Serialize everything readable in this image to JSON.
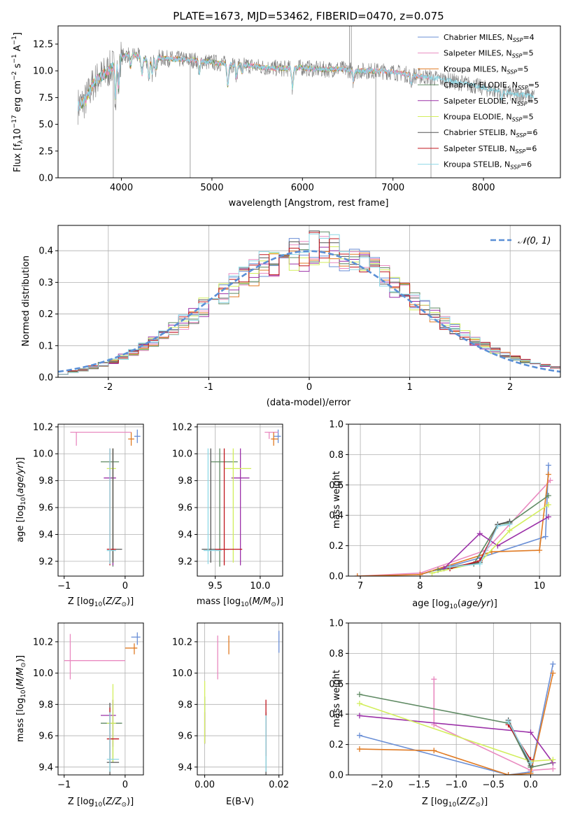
{
  "colors": {
    "Chabrier MILES": "#6a8fd6",
    "Salpeter MILES": "#e98ac0",
    "Kroupa MILES": "#e07b24",
    "Chabrier ELODIE": "#5f8a63",
    "Salpeter ELODIE": "#9b30a8",
    "Kroupa ELODIE": "#d2ee5c",
    "Chabrier STELIB": "#555555",
    "Salpeter STELIB": "#c0161e",
    "Kroupa STELIB": "#8ed8e6"
  },
  "chart_data": [
    {
      "id": "spectrum",
      "type": "line",
      "title": "PLATE=1673, MJD=53462, FIBERID=0470, z=0.075",
      "xlabel": "wavelength [Angstrom, rest frame]",
      "ylabel": "Flux [f_λ 10^-17 erg cm^-2 s^-1 A^-1]",
      "xlim": [
        3300,
        8850
      ],
      "ylim": [
        0,
        14.2
      ],
      "xticks": [
        4000,
        5000,
        6000,
        7000,
        8000
      ],
      "yticks": [
        0.0,
        2.5,
        5.0,
        7.5,
        10.0,
        12.5
      ],
      "ytick_labels": [
        "0.0",
        "2.5",
        "5.0",
        "7.5",
        "10.0",
        "12.5"
      ],
      "legend": [
        "Chabrier MILES, N_SSP=4",
        "Salpeter MILES, N_SSP=5",
        "Kroupa MILES, N_SSP=5",
        "Chabrier ELODIE, N_SSP=5",
        "Salpeter ELODIE, N_SSP=5",
        "Kroupa ELODIE, N_SSP=5",
        "Chabrier STELIB, N_SSP=6",
        "Salpeter STELIB, N_SSP=6",
        "Kroupa STELIB, N_SSP=6"
      ],
      "legend_placement": "upper right",
      "continuum_x": [
        3500,
        3600,
        3700,
        3800,
        3900,
        4000,
        4100,
        4200,
        4300,
        4400,
        4600,
        4800,
        5000,
        5200,
        5400,
        5600,
        5800,
        6000,
        6200,
        6400,
        6600,
        6800,
        7000,
        7200,
        7400,
        7600,
        7800,
        8000,
        8200,
        8400,
        8560
      ],
      "continuum_y": [
        6.6,
        7.2,
        9.0,
        9.6,
        10.4,
        11.3,
        11.6,
        11.3,
        10.9,
        11.2,
        11.1,
        11.0,
        10.8,
        10.6,
        10.5,
        10.3,
        10.2,
        10.3,
        10.1,
        10.2,
        10.0,
        10.0,
        9.9,
        9.6,
        9.4,
        9.1,
        8.8,
        8.4,
        8.0,
        7.8,
        7.6
      ]
    },
    {
      "id": "residuals",
      "type": "histogram",
      "xlabel": "(data-model)/error",
      "ylabel": "Normed distribution",
      "xlim": [
        -2.5,
        2.5
      ],
      "ylim": [
        0,
        0.48
      ],
      "xticks": [
        -2,
        -1,
        0,
        1,
        2
      ],
      "yticks": [
        0.0,
        0.1,
        0.2,
        0.3,
        0.4
      ],
      "ytick_labels": [
        "0.0",
        "0.1",
        "0.2",
        "0.3",
        "0.4"
      ],
      "reference_curve": "N(0,1)",
      "legend": [
        "𝒩(0, 1)"
      ],
      "legend_placement": "upper right",
      "bin_width": 0.1
    },
    {
      "id": "age_vs_Z",
      "type": "scatter",
      "xlabel": "Z [log10(Z/Z⊙)]",
      "ylabel": "age  [log10(age/yr)]",
      "xlim": [
        -1.1,
        0.3
      ],
      "ylim": [
        9.09,
        10.22
      ],
      "xticks": [
        -1,
        0
      ],
      "xtick_labels": [
        "−1",
        "0"
      ],
      "yticks": [
        9.2,
        9.4,
        9.6,
        9.8,
        10.0,
        10.2
      ],
      "ytick_labels": [
        "9.2",
        "9.4",
        "9.6",
        "9.8",
        "10.0",
        "10.2"
      ],
      "points": [
        {
          "model": "Chabrier MILES",
          "x": 0.2,
          "y": 10.13,
          "xerr": [
            0.05,
            0.05
          ],
          "yerr": [
            0.05,
            0.05
          ]
        },
        {
          "model": "Salpeter MILES",
          "x": -0.8,
          "y": 10.16,
          "xerr": [
            0.1,
            0.9
          ],
          "yerr": [
            0.1,
            0.0
          ]
        },
        {
          "model": "Kroupa MILES",
          "x": 0.1,
          "y": 10.11,
          "xerr": [
            0.05,
            0.05
          ],
          "yerr": [
            0.05,
            0.05
          ]
        },
        {
          "model": "Chabrier ELODIE",
          "x": -0.2,
          "y": 9.94,
          "xerr": [
            0.2,
            0.1
          ],
          "yerr": [
            0.78,
            0.1
          ]
        },
        {
          "model": "Salpeter ELODIE",
          "x": -0.2,
          "y": 9.82,
          "xerr": [
            0.15,
            0.05
          ],
          "yerr": [
            0.65,
            0.22
          ]
        },
        {
          "model": "Kroupa ELODIE",
          "x": -0.2,
          "y": 9.89,
          "xerr": [
            0.1,
            0.05
          ],
          "yerr": [
            0.7,
            0.15
          ]
        },
        {
          "model": "Chabrier STELIB",
          "x": -0.2,
          "y": 9.29,
          "xerr": [
            0.05,
            0.15
          ],
          "yerr": [
            0.1,
            0.75
          ]
        },
        {
          "model": "Salpeter STELIB",
          "x": -0.25,
          "y": 9.29,
          "xerr": [
            0.05,
            0.1
          ],
          "yerr": [
            0.12,
            0.75
          ]
        },
        {
          "model": "Kroupa STELIB",
          "x": -0.25,
          "y": 9.28,
          "xerr": [
            0.05,
            0.1
          ],
          "yerr": [
            0.1,
            0.76
          ]
        }
      ]
    },
    {
      "id": "age_vs_mass",
      "type": "scatter",
      "xlabel": "mass [log10(M/M⊙)]",
      "ylabel": "",
      "xlim": [
        9.3,
        10.25
      ],
      "ylim": [
        9.09,
        10.22
      ],
      "xticks": [
        9.5,
        10.0
      ],
      "xtick_labels": [
        "9.5",
        "10.0"
      ],
      "yticks": [
        9.2,
        9.4,
        9.6,
        9.8,
        10.0,
        10.2
      ],
      "ytick_labels": [
        "9.2",
        "9.4",
        "9.6",
        "9.8",
        "10.0",
        "10.2"
      ],
      "points": [
        {
          "model": "Chabrier MILES",
          "x": 10.2,
          "y": 10.13,
          "xerr": [
            0.05,
            0.03
          ],
          "yerr": [
            0.05,
            0.05
          ]
        },
        {
          "model": "Salpeter MILES",
          "x": 10.1,
          "y": 10.16,
          "xerr": [
            0.05,
            0.1
          ],
          "yerr": [
            0.05,
            0.0
          ]
        },
        {
          "model": "Kroupa MILES",
          "x": 10.15,
          "y": 10.11,
          "xerr": [
            0.03,
            0.05
          ],
          "yerr": [
            0.05,
            0.05
          ]
        },
        {
          "model": "Chabrier ELODIE",
          "x": 9.55,
          "y": 9.94,
          "xerr": [
            0.1,
            0.2
          ],
          "yerr": [
            0.78,
            0.1
          ]
        },
        {
          "model": "Salpeter ELODIE",
          "x": 9.78,
          "y": 9.82,
          "xerr": [
            0.1,
            0.1
          ],
          "yerr": [
            0.65,
            0.22
          ]
        },
        {
          "model": "Kroupa ELODIE",
          "x": 9.7,
          "y": 9.89,
          "xerr": [
            0.1,
            0.2
          ],
          "yerr": [
            0.7,
            0.15
          ]
        },
        {
          "model": "Chabrier STELIB",
          "x": 9.45,
          "y": 9.29,
          "xerr": [
            0.1,
            0.2
          ],
          "yerr": [
            0.1,
            0.75
          ]
        },
        {
          "model": "Salpeter STELIB",
          "x": 9.6,
          "y": 9.29,
          "xerr": [
            0.1,
            0.2
          ],
          "yerr": [
            0.12,
            0.75
          ]
        },
        {
          "model": "Kroupa STELIB",
          "x": 9.42,
          "y": 9.28,
          "xerr": [
            0.05,
            0.15
          ],
          "yerr": [
            0.1,
            0.76
          ]
        }
      ]
    },
    {
      "id": "weight_vs_age",
      "type": "line",
      "xlabel": "age  [log10(age/yr)]",
      "ylabel": "mass weight",
      "xlim": [
        6.8,
        10.35
      ],
      "ylim": [
        0,
        1.0
      ],
      "xticks": [
        7,
        8,
        9,
        10
      ],
      "yticks": [
        0.0,
        0.2,
        0.4,
        0.6,
        0.8,
        1.0
      ],
      "ytick_labels": [
        "0.0",
        "0.2",
        "0.4",
        "0.6",
        "0.8",
        "1.0"
      ],
      "series": [
        {
          "model": "Chabrier MILES",
          "x": [
            8.0,
            9.0,
            10.1,
            10.15
          ],
          "y": [
            0.01,
            0.12,
            0.26,
            0.73
          ]
        },
        {
          "model": "Salpeter MILES",
          "x": [
            6.95,
            8.0,
            9.1,
            10.18
          ],
          "y": [
            0.0,
            0.02,
            0.17,
            0.63
          ]
        },
        {
          "model": "Kroupa MILES",
          "x": [
            6.95,
            8.0,
            9.2,
            10.0,
            10.15
          ],
          "y": [
            0.0,
            0.01,
            0.16,
            0.17,
            0.67
          ]
        },
        {
          "model": "Chabrier ELODIE",
          "x": [
            8.3,
            8.9,
            9.3,
            9.5,
            10.15
          ],
          "y": [
            0.04,
            0.08,
            0.34,
            0.35,
            0.53
          ]
        },
        {
          "model": "Salpeter ELODIE",
          "x": [
            8.4,
            9.0,
            9.3,
            10.15
          ],
          "y": [
            0.05,
            0.28,
            0.2,
            0.39
          ]
        },
        {
          "model": "Kroupa ELODIE",
          "x": [
            8.2,
            9.0,
            9.5,
            10.15
          ],
          "y": [
            0.02,
            0.09,
            0.3,
            0.47
          ]
        },
        {
          "model": "Chabrier STELIB",
          "x": [
            8.5,
            9.0,
            9.3,
            9.5
          ],
          "y": [
            0.06,
            0.09,
            0.34,
            0.36
          ]
        },
        {
          "model": "Salpeter STELIB",
          "x": [
            8.5,
            9.0,
            9.3
          ],
          "y": [
            0.05,
            0.1,
            0.33
          ]
        },
        {
          "model": "Kroupa STELIB",
          "x": [
            8.5,
            9.0,
            9.3,
            9.5
          ],
          "y": [
            0.06,
            0.08,
            0.33,
            0.34
          ]
        }
      ]
    },
    {
      "id": "mass_vs_Z",
      "type": "scatter",
      "xlabel": "Z [log10(Z/Z⊙)]",
      "ylabel": "mass [log10(M/M⊙)]",
      "xlim": [
        -1.1,
        0.3
      ],
      "ylim": [
        9.35,
        10.32
      ],
      "xticks": [
        -1,
        0
      ],
      "xtick_labels": [
        "−1",
        "0"
      ],
      "yticks": [
        9.4,
        9.6,
        9.8,
        10.0,
        10.2
      ],
      "ytick_labels": [
        "9.4",
        "9.6",
        "9.8",
        "10.0",
        "10.2"
      ],
      "points": [
        {
          "model": "Chabrier MILES",
          "x": 0.2,
          "y": 10.23,
          "xerr": [
            0.1,
            0.05
          ],
          "yerr": [
            0.05,
            0.03
          ]
        },
        {
          "model": "Salpeter MILES",
          "x": -0.9,
          "y": 10.08,
          "xerr": [
            0.1,
            0.9
          ],
          "yerr": [
            0.12,
            0.17
          ]
        },
        {
          "model": "Kroupa MILES",
          "x": 0.15,
          "y": 10.16,
          "xerr": [
            0.15,
            0.05
          ],
          "yerr": [
            0.04,
            0.03
          ]
        },
        {
          "model": "Chabrier ELODIE",
          "x": -0.2,
          "y": 9.68,
          "xerr": [
            0.2,
            0.15
          ],
          "yerr": [
            0.25,
            0.15
          ]
        },
        {
          "model": "Salpeter ELODIE",
          "x": -0.2,
          "y": 9.73,
          "xerr": [
            0.2,
            0.05
          ],
          "yerr": [
            0.2,
            0.1
          ]
        },
        {
          "model": "Kroupa ELODIE",
          "x": -0.2,
          "y": 9.68,
          "xerr": [
            0.1,
            0.05
          ],
          "yerr": [
            0.25,
            0.25
          ]
        },
        {
          "model": "Chabrier STELIB",
          "x": -0.25,
          "y": 9.43,
          "xerr": [
            0.05,
            0.15
          ],
          "yerr": [
            0.08,
            0.38
          ]
        },
        {
          "model": "Salpeter STELIB",
          "x": -0.25,
          "y": 9.58,
          "xerr": [
            0.05,
            0.15
          ],
          "yerr": [
            0.15,
            0.2
          ]
        },
        {
          "model": "Kroupa STELIB",
          "x": -0.25,
          "y": 9.45,
          "xerr": [
            0.05,
            0.15
          ],
          "yerr": [
            0.08,
            0.3
          ]
        }
      ]
    },
    {
      "id": "mass_vs_ebv",
      "type": "scatter",
      "xlabel": "E(B-V)",
      "ylabel": "",
      "xlim": [
        -0.002,
        0.021
      ],
      "ylim": [
        9.35,
        10.32
      ],
      "xticks": [
        0.0,
        0.02
      ],
      "xtick_labels": [
        "0.00",
        "0.02"
      ],
      "yticks": [
        9.4,
        9.6,
        9.8,
        10.0,
        10.2
      ],
      "ytick_labels": [
        "9.4",
        "9.6",
        "9.8",
        "10.0",
        "10.2"
      ],
      "points": [
        {
          "model": "Chabrier MILES",
          "x": 0.02,
          "y": 10.2,
          "yerr": [
            0.07,
            0.07
          ]
        },
        {
          "model": "Salpeter MILES",
          "x": 0.0035,
          "y": 10.1,
          "yerr": [
            0.14,
            0.14
          ]
        },
        {
          "model": "Kroupa MILES",
          "x": 0.0065,
          "y": 10.18,
          "yerr": [
            0.06,
            0.06
          ]
        },
        {
          "model": "Chabrier ELODIE",
          "x": 0.0,
          "y": 9.7,
          "yerr": [
            0.15,
            0.15
          ]
        },
        {
          "model": "Salpeter ELODIE",
          "x": 0.0,
          "y": 9.65,
          "yerr": [
            0.1,
            0.1
          ]
        },
        {
          "model": "Kroupa ELODIE",
          "x": 0.0,
          "y": 9.75,
          "yerr": [
            0.2,
            0.2
          ]
        },
        {
          "model": "Chabrier STELIB",
          "x": 0.0165,
          "y": 9.55,
          "yerr": [
            0.2,
            0.2
          ]
        },
        {
          "model": "Salpeter STELIB",
          "x": 0.0165,
          "y": 9.65,
          "yerr": [
            0.18,
            0.18
          ]
        },
        {
          "model": "Kroupa STELIB",
          "x": 0.0165,
          "y": 9.55,
          "yerr": [
            0.18,
            0.18
          ]
        }
      ]
    },
    {
      "id": "weight_vs_Z",
      "type": "line",
      "xlabel": "Z [log10(Z/Z⊙)]",
      "ylabel": "mass weight",
      "xlim": [
        -2.45,
        0.4
      ],
      "ylim": [
        0,
        1.0
      ],
      "xticks": [
        -2.0,
        -1.5,
        -1.0,
        -0.5,
        0.0
      ],
      "xtick_labels": [
        "−2.0",
        "−1.5",
        "−1.0",
        "−0.5",
        "0.0"
      ],
      "yticks": [
        0.0,
        0.2,
        0.4,
        0.6,
        0.8,
        1.0
      ],
      "ytick_labels": [
        "0.0",
        "0.2",
        "0.4",
        "0.6",
        "0.8",
        "1.0"
      ],
      "series": [
        {
          "model": "Chabrier MILES",
          "x": [
            -2.3,
            -0.3,
            0.0,
            0.3
          ],
          "y": [
            0.26,
            0.0,
            0.02,
            0.73
          ]
        },
        {
          "model": "Salpeter MILES",
          "x": [
            -1.3,
            -1.3,
            0.0,
            0.3
          ],
          "y": [
            0.63,
            0.33,
            0.03,
            0.04
          ]
        },
        {
          "model": "Kroupa MILES",
          "x": [
            -2.3,
            -1.3,
            -0.3,
            0.0,
            0.3
          ],
          "y": [
            0.17,
            0.16,
            0.0,
            0.01,
            0.67
          ]
        },
        {
          "model": "Chabrier ELODIE",
          "x": [
            -2.3,
            -0.3,
            0.0,
            0.3
          ],
          "y": [
            0.53,
            0.34,
            0.05,
            0.08
          ]
        },
        {
          "model": "Salpeter ELODIE",
          "x": [
            -2.3,
            0.0,
            0.3
          ],
          "y": [
            0.39,
            0.28,
            0.08
          ]
        },
        {
          "model": "Kroupa ELODIE",
          "x": [
            -2.3,
            0.0,
            0.3
          ],
          "y": [
            0.47,
            0.09,
            0.1
          ]
        },
        {
          "model": "Chabrier STELIB",
          "x": [
            -0.3,
            0.0
          ],
          "y": [
            0.36,
            0.06
          ]
        },
        {
          "model": "Salpeter STELIB",
          "x": [
            -0.3,
            0.0
          ],
          "y": [
            0.33,
            0.1
          ]
        },
        {
          "model": "Kroupa STELIB",
          "x": [
            -0.3,
            0.0
          ],
          "y": [
            0.35,
            0.08
          ]
        }
      ]
    }
  ]
}
